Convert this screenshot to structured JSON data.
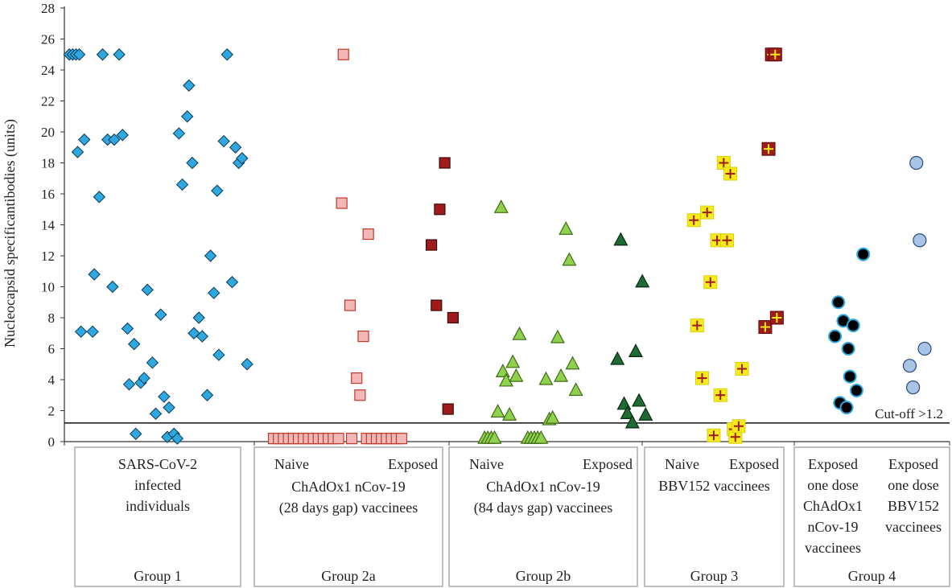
{
  "chart_data": {
    "type": "scatter",
    "ylabel": "Nucleocapsid specificantibodies (units)",
    "ylim": [
      0,
      28
    ],
    "yticks": [
      0,
      2,
      4,
      6,
      8,
      10,
      12,
      14,
      16,
      18,
      20,
      22,
      24,
      26,
      28
    ],
    "cutoff": {
      "value": 1.2,
      "label": "Cut-off >1.2"
    },
    "colors": {
      "g1": "#2fa8df",
      "g2a_naive": "#f2b8b8",
      "g2a_naive_edge": "#c0392b",
      "g2a_exposed": "#a01c1c",
      "g2b_naive": "#8fd14f",
      "g2b_exposed": "#1e6b33",
      "g3": "#f5ec19",
      "g3_cross": "#a01c1c",
      "g4_chad": "#000000",
      "g4_chad_edge": "#2fa8df",
      "g4_bbv": "#a9c4e6",
      "g4_bbv_edge": "#2b4a7a"
    },
    "series": [
      {
        "name": "SARS-CoV-2 infected individuals",
        "marker": "diamond",
        "color": "#2fa8df",
        "values": [
          [
            0.0,
            25
          ],
          [
            0.2,
            25
          ],
          [
            0.4,
            25
          ],
          [
            0.6,
            25
          ],
          [
            0.5,
            18.7
          ],
          [
            0.9,
            19.5
          ],
          [
            2.0,
            25
          ],
          [
            3.0,
            25
          ],
          [
            1.8,
            15.8
          ],
          [
            2.3,
            19.5
          ],
          [
            2.7,
            19.5
          ],
          [
            3.2,
            19.8
          ],
          [
            0.7,
            7.1
          ],
          [
            1.4,
            7.1
          ],
          [
            1.5,
            10.8
          ],
          [
            2.6,
            10.0
          ],
          [
            3.5,
            7.3
          ],
          [
            3.9,
            6.3
          ],
          [
            3.6,
            3.7
          ],
          [
            4.3,
            3.8
          ],
          [
            4.5,
            4.1
          ],
          [
            4.0,
            0.5
          ],
          [
            4.7,
            9.8
          ],
          [
            5.0,
            5.1
          ],
          [
            5.5,
            8.2
          ],
          [
            5.7,
            2.9
          ],
          [
            5.2,
            1.8
          ],
          [
            6.0,
            2.2
          ],
          [
            5.9,
            0.3
          ],
          [
            6.3,
            0.5
          ],
          [
            6.5,
            0.2
          ],
          [
            6.6,
            19.9
          ],
          [
            6.8,
            16.6
          ],
          [
            7.1,
            21.0
          ],
          [
            7.2,
            23.0
          ],
          [
            7.4,
            18.0
          ],
          [
            7.8,
            8.0
          ],
          [
            7.5,
            7.0
          ],
          [
            8.0,
            6.8
          ],
          [
            8.3,
            3.0
          ],
          [
            8.5,
            12.0
          ],
          [
            8.7,
            9.6
          ],
          [
            8.9,
            16.2
          ],
          [
            9.0,
            5.6
          ],
          [
            9.3,
            19.4
          ],
          [
            9.5,
            25
          ],
          [
            9.8,
            10.3
          ],
          [
            10.0,
            19.0
          ],
          [
            10.2,
            18.0
          ],
          [
            10.4,
            18.3
          ],
          [
            10.7,
            5.0
          ]
        ]
      },
      {
        "name": "Group 2a Naive",
        "marker": "square",
        "color": "#f2b8b8",
        "values": [
          [
            12.3,
            0.2
          ],
          [
            12.6,
            0.2
          ],
          [
            12.9,
            0.2
          ],
          [
            13.2,
            0.2
          ],
          [
            13.5,
            0.2
          ],
          [
            13.8,
            0.2
          ],
          [
            14.1,
            0.2
          ],
          [
            14.4,
            0.2
          ],
          [
            14.7,
            0.2
          ],
          [
            15.0,
            0.2
          ],
          [
            15.3,
            0.2
          ],
          [
            15.6,
            0.2
          ],
          [
            15.9,
            0.2
          ],
          [
            16.2,
            0.2
          ],
          [
            17.0,
            0.2
          ],
          [
            17.9,
            0.2
          ],
          [
            18.2,
            0.2
          ],
          [
            18.5,
            0.2
          ],
          [
            18.8,
            0.2
          ],
          [
            19.1,
            0.2
          ],
          [
            19.4,
            0.2
          ],
          [
            19.7,
            0.2
          ],
          [
            20.0,
            0.2
          ],
          [
            16.5,
            25
          ],
          [
            16.4,
            15.4
          ],
          [
            16.9,
            8.8
          ],
          [
            18.0,
            13.4
          ],
          [
            17.3,
            4.1
          ],
          [
            17.5,
            3.0
          ],
          [
            17.7,
            6.8
          ]
        ]
      },
      {
        "name": "Group 2a Exposed",
        "marker": "square",
        "color": "#a01c1c",
        "values": [
          [
            21.8,
            12.7
          ],
          [
            22.1,
            8.8
          ],
          [
            22.3,
            15.0
          ],
          [
            22.6,
            18.0
          ],
          [
            22.8,
            2.1
          ],
          [
            23.1,
            8.0
          ]
        ]
      },
      {
        "name": "Group 2b Naive",
        "marker": "triangle",
        "color": "#8fd14f",
        "values": [
          [
            25.0,
            0.2
          ],
          [
            25.2,
            0.2
          ],
          [
            25.4,
            0.2
          ],
          [
            25.6,
            0.2
          ],
          [
            25.8,
            1.9
          ],
          [
            26.1,
            4.5
          ],
          [
            26.3,
            3.9
          ],
          [
            26.5,
            1.7
          ],
          [
            26.7,
            5.1
          ],
          [
            26.9,
            4.2
          ],
          [
            27.1,
            6.9
          ],
          [
            27.6,
            0.2
          ],
          [
            27.8,
            0.2
          ],
          [
            28.0,
            0.2
          ],
          [
            28.2,
            0.2
          ],
          [
            28.4,
            0.2
          ],
          [
            28.7,
            4.0
          ],
          [
            28.9,
            1.4
          ],
          [
            29.1,
            1.5
          ],
          [
            29.4,
            6.7
          ],
          [
            29.6,
            4.2
          ],
          [
            29.9,
            13.7
          ],
          [
            30.1,
            11.7
          ],
          [
            30.3,
            5.0
          ],
          [
            30.5,
            3.3
          ],
          [
            26.0,
            15.1
          ]
        ]
      },
      {
        "name": "Group 2b Exposed",
        "marker": "triangle",
        "color": "#1e6b33",
        "values": [
          [
            33.0,
            5.3
          ],
          [
            33.4,
            2.4
          ],
          [
            33.6,
            1.8
          ],
          [
            33.2,
            13.0
          ],
          [
            33.9,
            1.2
          ],
          [
            34.1,
            5.8
          ],
          [
            34.3,
            2.6
          ],
          [
            34.5,
            10.3
          ],
          [
            34.7,
            1.7
          ]
        ]
      },
      {
        "name": "Group 3 Naive",
        "marker": "cross",
        "color": "#f5ec19",
        "values": [
          [
            37.6,
            14.3
          ],
          [
            37.8,
            7.5
          ],
          [
            38.1,
            4.1
          ],
          [
            38.4,
            14.8
          ],
          [
            38.6,
            10.3
          ],
          [
            38.8,
            0.4
          ],
          [
            39.0,
            13.0
          ],
          [
            39.2,
            3.0
          ],
          [
            39.4,
            18.0
          ],
          [
            39.6,
            13.0
          ],
          [
            39.8,
            17.3
          ],
          [
            40.0,
            0.8
          ],
          [
            40.1,
            0.3
          ],
          [
            40.3,
            1.0
          ],
          [
            40.5,
            4.7
          ]
        ]
      },
      {
        "name": "Group 3 Exposed",
        "marker": "cross_red",
        "color": "#a01c1c",
        "values": [
          [
            41.9,
            7.4
          ],
          [
            42.1,
            18.9
          ],
          [
            42.3,
            25
          ],
          [
            42.5,
            25
          ],
          [
            42.6,
            8.0
          ]
        ]
      },
      {
        "name": "Exposed one dose ChAdOx1 nCov-19 vaccinees",
        "marker": "circle_dark",
        "color": "#000000",
        "values": [
          [
            46.1,
            6.8
          ],
          [
            46.3,
            9.0
          ],
          [
            46.4,
            2.5
          ],
          [
            46.6,
            7.8
          ],
          [
            46.8,
            2.2
          ],
          [
            46.9,
            6.0
          ],
          [
            47.0,
            4.2
          ],
          [
            47.2,
            7.5
          ],
          [
            47.4,
            3.3
          ],
          [
            47.8,
            12.1
          ]
        ]
      },
      {
        "name": "Exposed one dose BBV152 vaccinees",
        "marker": "circle_light",
        "color": "#a9c4e6",
        "values": [
          [
            50.6,
            4.9
          ],
          [
            50.8,
            3.5
          ],
          [
            51.0,
            18.0
          ],
          [
            51.2,
            13.0
          ],
          [
            51.5,
            6.0
          ]
        ]
      }
    ],
    "group_boxes": [
      {
        "id": "group-1",
        "lines": [
          "SARS-CoV-2",
          "infected",
          "individuals"
        ],
        "footer": "Group 1"
      },
      {
        "id": "group-2a",
        "top_left": "Naive",
        "top_right": "Exposed",
        "lines": [
          "ChAdOx1 nCov-19",
          "(28 days gap) vaccinees"
        ],
        "footer": "Group 2a"
      },
      {
        "id": "group-2b",
        "top_left": "Naive",
        "top_right": "Exposed",
        "lines": [
          "ChAdOx1 nCov-19",
          "(84 days gap) vaccinees"
        ],
        "footer": "Group 2b"
      },
      {
        "id": "group-3",
        "top_left": "Naive",
        "top_right": "Exposed",
        "lines": [
          "BBV152 vaccinees"
        ],
        "footer": "Group 3"
      },
      {
        "id": "group-4",
        "col_left": [
          "Exposed",
          "one dose",
          "ChAdOx1",
          "nCov-19",
          "vaccinees"
        ],
        "col_right": [
          "Exposed",
          "one dose",
          "BBV152",
          "vaccinees"
        ],
        "footer": "Group 4"
      }
    ]
  }
}
